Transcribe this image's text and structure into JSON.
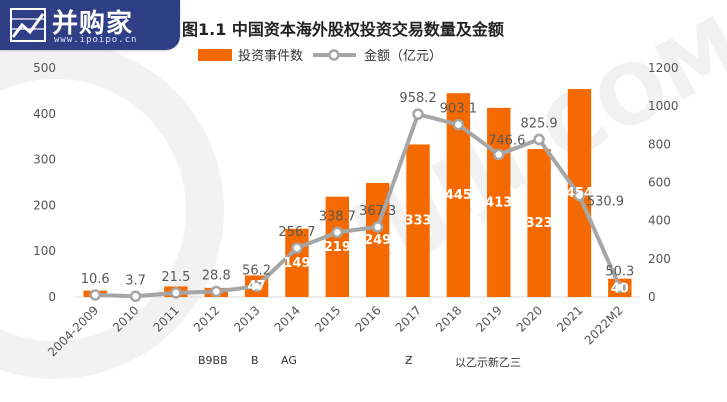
{
  "logo": {
    "name": "并购家",
    "url": "www.ipoipo.cn"
  },
  "watermark": "IIJIJI.COM",
  "footer_fragments": [
    "B9BB",
    "B",
    "AG",
    "Ƶ",
    "以乙示新乙三"
  ],
  "chart_data": {
    "type": "bar",
    "title": "图1.1  中国资本海外股权投资交易数量及金额",
    "categories": [
      "2004-2009",
      "2010",
      "2011",
      "2012",
      "2013",
      "2014",
      "2015",
      "2016",
      "2017",
      "2018",
      "2019",
      "2020",
      "2021",
      "2022M2"
    ],
    "series": [
      {
        "name": "投资事件数",
        "type": "bar",
        "axis": "left",
        "color": "#f56a00",
        "values": [
          14,
          4,
          23,
          20,
          47,
          149,
          219,
          249,
          333,
          445,
          413,
          323,
          454,
          40
        ],
        "labels": [
          null,
          null,
          null,
          null,
          "47",
          "149",
          "219",
          "249",
          "333",
          "445",
          "413",
          "323",
          "454",
          "40"
        ]
      },
      {
        "name": "金额（亿元）",
        "type": "line",
        "axis": "right",
        "color": "#a6a6a6",
        "values": [
          10.6,
          3.7,
          21.5,
          28.8,
          56.2,
          256.7,
          338.7,
          367.3,
          958.2,
          903.1,
          746.6,
          825.9,
          530.9,
          50.3
        ]
      }
    ],
    "y_left": {
      "min": 0,
      "max": 500,
      "ticks": [
        0,
        100,
        200,
        300,
        400,
        500
      ]
    },
    "y_right": {
      "min": 0,
      "max": 1200,
      "ticks": [
        0,
        200,
        400,
        600,
        800,
        1000,
        1200
      ]
    },
    "grid": false,
    "legend_position": "top-center"
  }
}
